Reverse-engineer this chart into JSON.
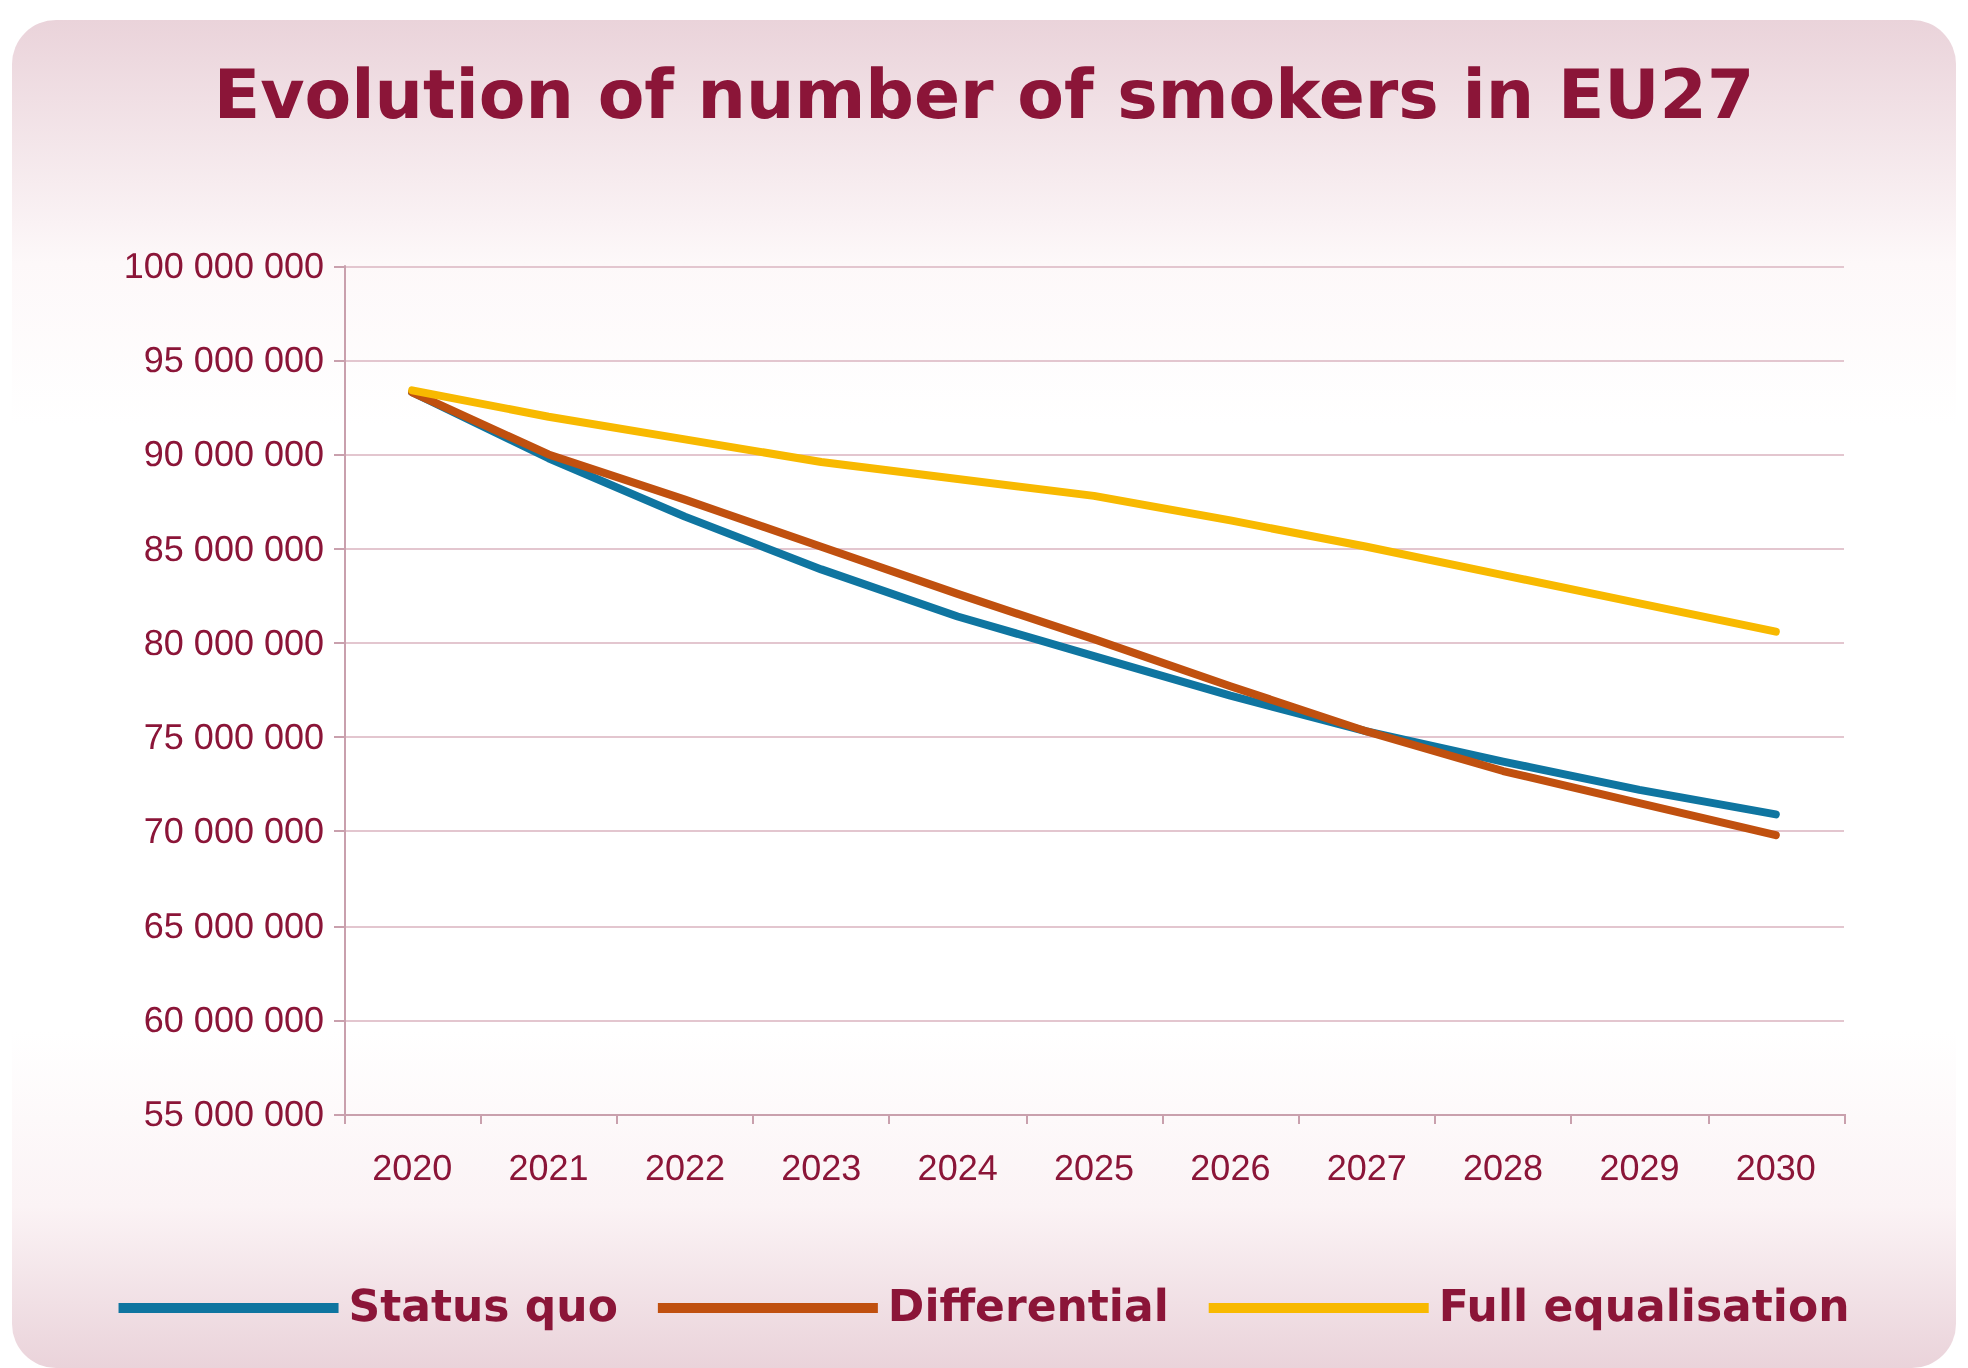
{
  "chart_data": {
    "type": "line",
    "title": "Evolution of number of smokers in EU27",
    "categories": [
      "2020",
      "2021",
      "2022",
      "2023",
      "2024",
      "2025",
      "2026",
      "2027",
      "2028",
      "2029",
      "2030"
    ],
    "series": [
      {
        "name": "Status quo",
        "color": "#0f75a0",
        "values": [
          93300000,
          89800000,
          86700000,
          83900000,
          81400000,
          79300000,
          77200000,
          75300000,
          73700000,
          72200000,
          70900000
        ]
      },
      {
        "name": "Differential",
        "color": "#c0500f",
        "values": [
          93300000,
          90000000,
          87600000,
          85100000,
          82600000,
          80200000,
          77700000,
          75300000,
          73200000,
          71500000,
          69800000
        ]
      },
      {
        "name": "Full equalisation",
        "color": "#f8b900",
        "values": [
          93400000,
          92000000,
          90800000,
          89600000,
          88700000,
          87800000,
          86500000,
          85100000,
          83600000,
          82100000,
          80600000
        ]
      }
    ],
    "ylim": [
      55000000,
      100000000
    ],
    "yticks": [
      {
        "value": 55000000,
        "label": "55 000 000"
      },
      {
        "value": 60000000,
        "label": "60 000 000"
      },
      {
        "value": 65000000,
        "label": "65 000 000"
      },
      {
        "value": 70000000,
        "label": "70 000 000"
      },
      {
        "value": 75000000,
        "label": "75 000 000"
      },
      {
        "value": 80000000,
        "label": "80 000 000"
      },
      {
        "value": 85000000,
        "label": "85 000 000"
      },
      {
        "value": 90000000,
        "label": "90 000 000"
      },
      {
        "value": 95000000,
        "label": "95 000 000"
      },
      {
        "value": 100000000,
        "label": "100 000 000"
      }
    ],
    "grid": "y",
    "legend": "bottom",
    "marker": "none",
    "line_style": "solid"
  }
}
